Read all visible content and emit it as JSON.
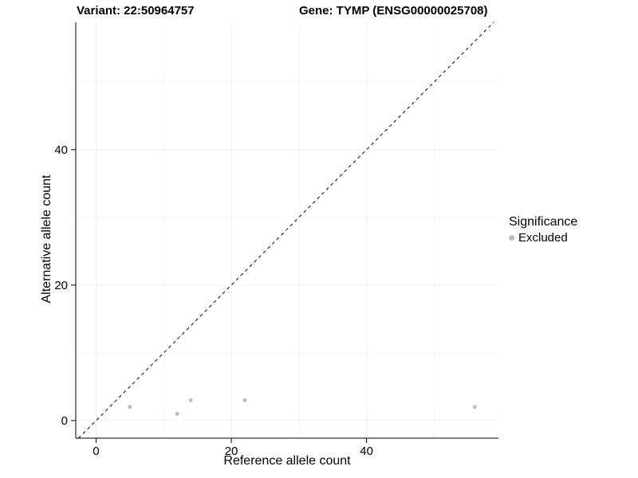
{
  "titles": {
    "variant": "Variant: 22:50964757",
    "gene": "Gene: TYMP (ENSG00000025708)"
  },
  "legend": {
    "title": "Significance",
    "entries": [
      {
        "label": "Excluded",
        "color": "#bcbcbc"
      }
    ]
  },
  "chart_data": {
    "type": "scatter",
    "title": "Variant: 22:50964757  |  Gene: TYMP (ENSG00000025708)",
    "xlabel": "Reference allele count",
    "ylabel": "Alternative allele count",
    "xlim": [
      -3,
      59.5
    ],
    "ylim": [
      -2.6,
      58.8
    ],
    "xticks": [
      0,
      20,
      40
    ],
    "yticks": [
      0,
      20,
      40
    ],
    "grid_major": [
      0,
      20,
      40
    ],
    "grid_minor": [
      10,
      30,
      50
    ],
    "legend_position": "right",
    "series": [
      {
        "name": "Excluded",
        "color": "#bcbcbc",
        "points": [
          {
            "x": 5,
            "y": 2
          },
          {
            "x": 12,
            "y": 1
          },
          {
            "x": 14,
            "y": 3
          },
          {
            "x": 22,
            "y": 3
          },
          {
            "x": 56,
            "y": 2
          }
        ]
      }
    ],
    "reference_line": {
      "type": "identity",
      "style": "dashed",
      "color": "#000000"
    }
  },
  "colors": {
    "point": "#bcbcbc",
    "axis": "#000000",
    "grid_major": "#efefef",
    "grid_minor": "#f5f5f5",
    "background": "#ffffff"
  }
}
